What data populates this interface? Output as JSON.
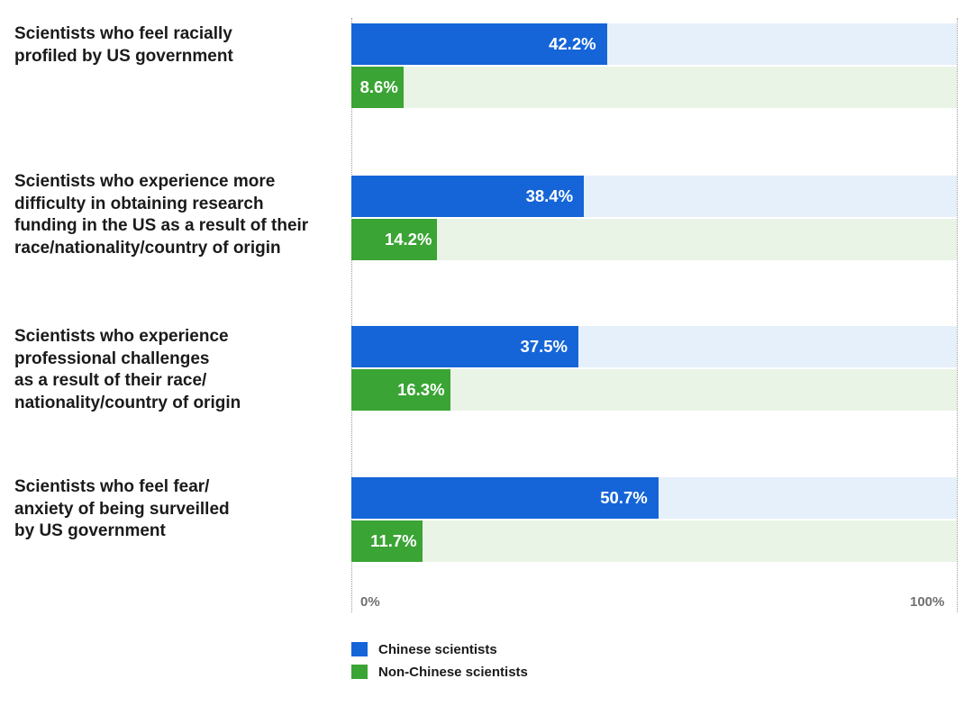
{
  "chart_data": {
    "type": "bar",
    "orientation": "horizontal",
    "categories": [
      "Scientists who feel racially\nprofiled by US government",
      "Scientists who experience more\ndifficulty in obtaining research\nfunding in the US as a result of their\nrace/nationality/country of origin",
      "Scientists who experience\nprofessional challenges\nas a result of their race/\nnationality/country of origin",
      "Scientists who feel fear/\nanxiety of being surveilled\nby US government"
    ],
    "series": [
      {
        "name": "Chinese scientists",
        "color": "#1565d8",
        "values": [
          42.2,
          38.4,
          37.5,
          50.7
        ],
        "labels": [
          "42.2%",
          "38.4%",
          "37.5%",
          "50.7%"
        ]
      },
      {
        "name": "Non-Chinese scientists",
        "color": "#3aa434",
        "values": [
          8.6,
          14.2,
          16.3,
          11.7
        ],
        "labels": [
          "8.6%",
          "14.2%",
          "16.3%",
          "11.7%"
        ]
      }
    ],
    "xlim": [
      0,
      100
    ],
    "ticks": [
      "0%",
      "100%"
    ],
    "legend": "bottom-left",
    "title": "",
    "xlabel": "",
    "ylabel": ""
  }
}
